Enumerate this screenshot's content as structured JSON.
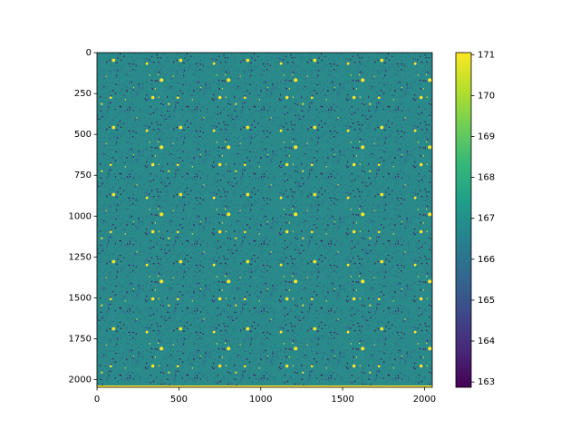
{
  "chart_data": {
    "type": "image",
    "colormap": "viridis",
    "xlim": [
      -0.5,
      2047.5
    ],
    "ylim": [
      2047.5,
      -0.5
    ],
    "xticks": [
      0,
      500,
      1000,
      1500,
      2000
    ],
    "yticks": [
      0,
      250,
      500,
      750,
      1000,
      1250,
      1500,
      1750,
      2000
    ],
    "colorbar": {
      "lim": [
        162.87,
        171.05
      ],
      "ticks": [
        163,
        164,
        165,
        166,
        167,
        168,
        169,
        170,
        171
      ]
    }
  }
}
